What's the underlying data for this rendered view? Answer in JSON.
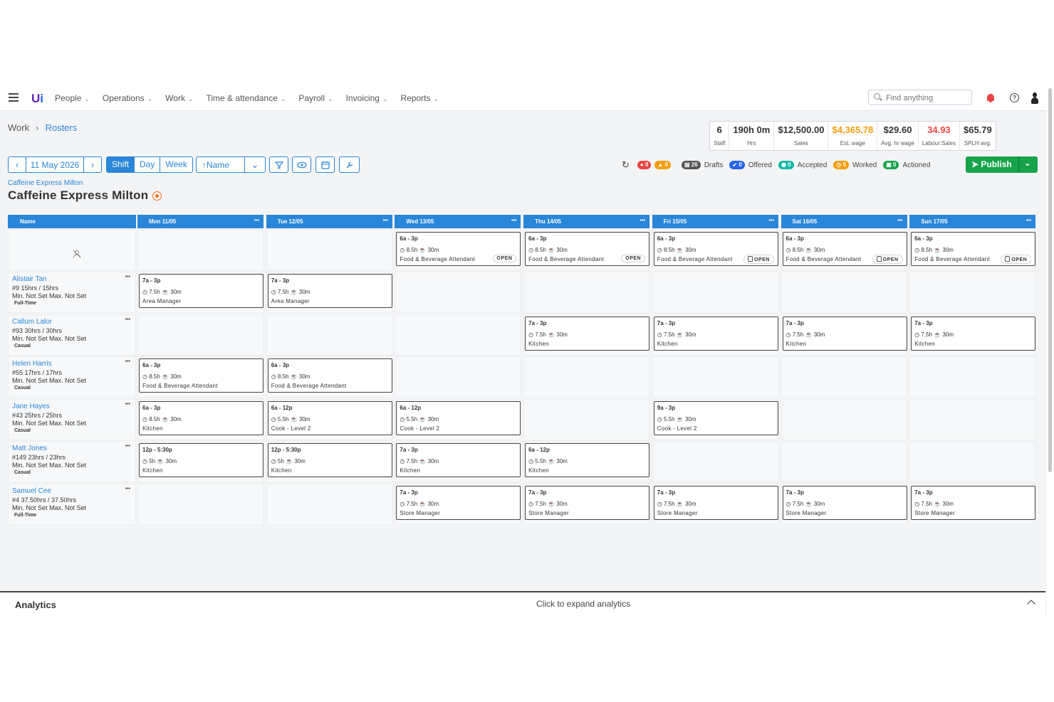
{
  "nav": {
    "items": [
      "People",
      "Operations",
      "Work",
      "Time & attendance",
      "Payroll",
      "Invoicing",
      "Reports"
    ],
    "search_placeholder": "Find anything"
  },
  "breadcrumb": {
    "parent": "Work",
    "current": "Rosters"
  },
  "stats": [
    {
      "value": "6",
      "label": "Staff",
      "color": "#333333"
    },
    {
      "value": "190h 0m",
      "label": "Hrs",
      "color": "#333333"
    },
    {
      "value": "$12,500.00",
      "label": "Sales",
      "color": "#333333"
    },
    {
      "value": "$4,365.78",
      "label": "Est. wage",
      "color": "#f59e0b"
    },
    {
      "value": "$29.60",
      "label": "Avg. hr wage",
      "color": "#333333"
    },
    {
      "value": "34.93",
      "label": "Labour:Sales",
      "color": "#ef4444"
    },
    {
      "value": "$65.79",
      "label": "SPLH avg.",
      "color": "#333333"
    }
  ],
  "toolbar": {
    "date": "11 May 2026",
    "views": [
      "Shift",
      "Day",
      "Week"
    ],
    "active_view": "Shift",
    "sort": "Name"
  },
  "status": {
    "errors": "0",
    "warnings": "0",
    "drafts_count": "26",
    "drafts_label": "Drafts",
    "offered_count": "0",
    "offered_label": "Offered",
    "accepted_count": "0",
    "accepted_label": "Accepted",
    "worked_count": "0",
    "worked_label": "Worked",
    "actioned_count": "0",
    "actioned_label": "Actioned",
    "publish_label": "Publish"
  },
  "location": "Caffeine Express Milton",
  "page_title": "Caffeine Express Milton",
  "roster": {
    "name_header": "Name",
    "days": [
      "Mon 11/05",
      "Tue 12/05",
      "Wed 13/05",
      "Thu 14/05",
      "Fri 15/05",
      "Sat 16/05",
      "Sun 17/05"
    ],
    "open_label": "OPEN",
    "open_shifts": [
      null,
      null,
      {
        "time": "6a - 3p",
        "dur": "8.5h",
        "brk": "30m",
        "role": "Food & Beverage Attendant",
        "lock": false
      },
      {
        "time": "6a - 3p",
        "dur": "8.5h",
        "brk": "30m",
        "role": "Food & Beverage Attendant",
        "lock": false
      },
      {
        "time": "6a - 3p",
        "dur": "8.5h",
        "brk": "30m",
        "role": "Food & Beverage Attendant",
        "lock": true
      },
      {
        "time": "6a - 3p",
        "dur": "8.5h",
        "brk": "30m",
        "role": "Food & Beverage Attendant",
        "lock": true
      },
      {
        "time": "6a - 3p",
        "dur": "8.5h",
        "brk": "30m",
        "role": "Food & Beverage Attendant",
        "lock": true
      }
    ],
    "staff": [
      {
        "name": "Alistair Tan",
        "hours": "#9 15hrs / 15hrs",
        "minmax": "Min. Not Set  Max. Not Set",
        "type": "Full-Time",
        "shifts": [
          {
            "time": "7a - 3p",
            "dur": "7.5h",
            "brk": "30m",
            "role": "Area Manager"
          },
          {
            "time": "7a - 3p",
            "dur": "7.5h",
            "brk": "30m",
            "role": "Area Manager"
          },
          null,
          null,
          null,
          null,
          null
        ]
      },
      {
        "name": "Callum Lalor",
        "hours": "#93 30hrs / 30hrs",
        "minmax": "Min. Not Set  Max. Not Set",
        "type": "Casual",
        "shifts": [
          null,
          null,
          null,
          {
            "time": "7a - 3p",
            "dur": "7.5h",
            "brk": "30m",
            "role": "Kitchen"
          },
          {
            "time": "7a - 3p",
            "dur": "7.5h",
            "brk": "30m",
            "role": "Kitchen"
          },
          {
            "time": "7a - 3p",
            "dur": "7.5h",
            "brk": "30m",
            "role": "Kitchen"
          },
          {
            "time": "7a - 3p",
            "dur": "7.5h",
            "brk": "30m",
            "role": "Kitchen"
          }
        ]
      },
      {
        "name": "Helen Harris",
        "hours": "#55 17hrs / 17hrs",
        "minmax": "Min. Not Set  Max. Not Set",
        "type": "Casual",
        "shifts": [
          {
            "time": "6a - 3p",
            "dur": "8.5h",
            "brk": "30m",
            "role": "Food & Beverage Attendant"
          },
          {
            "time": "6a - 3p",
            "dur": "8.5h",
            "brk": "30m",
            "role": "Food & Beverage Attendant"
          },
          null,
          null,
          null,
          null,
          null
        ]
      },
      {
        "name": "Jane Hayes",
        "hours": "#43 25hrs / 25hrs",
        "minmax": "Min. Not Set  Max. Not Set",
        "type": "Casual",
        "shifts": [
          {
            "time": "6a - 3p",
            "dur": "8.5h",
            "brk": "30m",
            "role": "Kitchen"
          },
          {
            "time": "6a - 12p",
            "dur": "5.5h",
            "brk": "30m",
            "role": "Cook - Level 2"
          },
          {
            "time": "6a - 12p",
            "dur": "5.5h",
            "brk": "30m",
            "role": "Cook - Level 2"
          },
          null,
          {
            "time": "9a - 3p",
            "dur": "5.5h",
            "brk": "30m",
            "role": "Cook - Level 2"
          },
          null,
          null
        ]
      },
      {
        "name": "Matt Jones",
        "hours": "#149 23hrs / 23hrs",
        "minmax": "Min. Not Set  Max. Not Set",
        "type": "Casual",
        "shifts": [
          {
            "time": "12p - 5:30p",
            "dur": "5h",
            "brk": "30m",
            "role": "Kitchen"
          },
          {
            "time": "12p - 5:30p",
            "dur": "5h",
            "brk": "30m",
            "role": "Kitchen"
          },
          {
            "time": "7a - 3p",
            "dur": "7.5h",
            "brk": "30m",
            "role": "Kitchen"
          },
          {
            "time": "6a - 12p",
            "dur": "5.5h",
            "brk": "30m",
            "role": "Kitchen"
          },
          null,
          null,
          null
        ]
      },
      {
        "name": "Samuel Cee",
        "hours": "#4 37.50hrs / 37.50hrs",
        "minmax": "Min. Not Set  Max. Not Set",
        "type": "Full-Time",
        "shifts": [
          null,
          null,
          {
            "time": "7a - 3p",
            "dur": "7.5h",
            "brk": "30m",
            "role": "Store Manager"
          },
          {
            "time": "7a - 3p",
            "dur": "7.5h",
            "brk": "30m",
            "role": "Store Manager"
          },
          {
            "time": "7a - 3p",
            "dur": "7.5h",
            "brk": "30m",
            "role": "Store Manager"
          },
          {
            "time": "7a - 3p",
            "dur": "7.5h",
            "brk": "30m",
            "role": "Store Manager"
          },
          {
            "time": "7a - 3p",
            "dur": "7.5h",
            "brk": "30m",
            "role": "Store Manager"
          }
        ]
      }
    ]
  },
  "analytics": {
    "title": "Analytics",
    "hint": "Click to expand analytics"
  },
  "colors": {
    "accent": "#2a86d8",
    "publish": "#16a34a",
    "error": "#ef4444",
    "warning": "#f59e0b"
  }
}
